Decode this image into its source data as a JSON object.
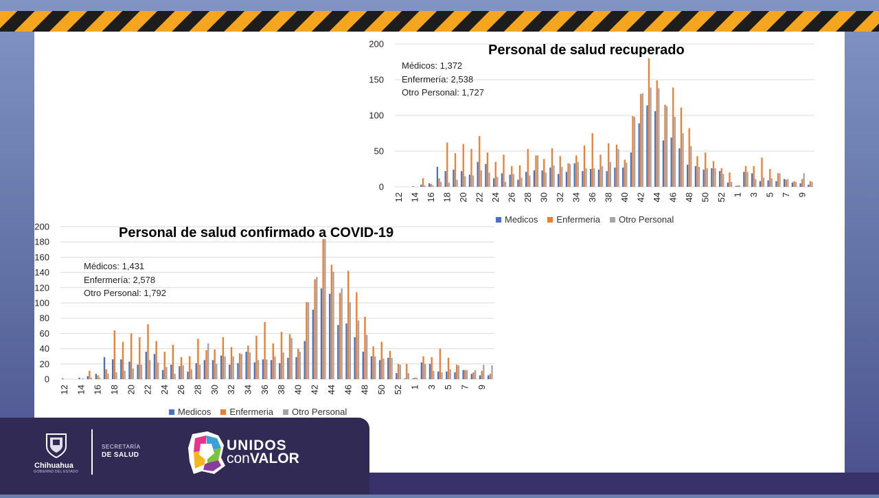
{
  "colors": {
    "medicos": "#4472c4",
    "enfermeria": "#ed7d31",
    "otro": "#a5a5a5",
    "grid": "#d9d9d9"
  },
  "legend_labels": [
    "Medicos",
    "Enfermeria",
    "Otro Personal"
  ],
  "chart_data": [
    {
      "type": "bar",
      "title": "Personal de salud recuperado",
      "notes": [
        "Médicos: 1,372",
        "Enfermería: 2,538",
        "Otro Personal: 1,727"
      ],
      "ylim": [
        0,
        200
      ],
      "yticks": [
        0,
        50,
        100,
        150,
        200
      ],
      "categories": [
        12,
        13,
        14,
        15,
        16,
        17,
        18,
        19,
        20,
        21,
        22,
        23,
        24,
        25,
        26,
        27,
        28,
        29,
        30,
        31,
        32,
        33,
        34,
        35,
        36,
        37,
        38,
        39,
        40,
        41,
        42,
        43,
        44,
        45,
        46,
        47,
        48,
        49,
        50,
        51,
        52,
        53,
        1,
        2,
        3,
        4,
        5,
        6,
        7,
        8,
        9,
        10
      ],
      "xtick_labels": [
        "12",
        "14",
        "16",
        "18",
        "20",
        "22",
        "24",
        "26",
        "28",
        "30",
        "32",
        "34",
        "36",
        "38",
        "40",
        "42",
        "44",
        "46",
        "48",
        "50",
        "52",
        "1",
        "3",
        "5",
        "7",
        "9"
      ],
      "series": [
        {
          "name": "Medicos",
          "values": [
            0,
            0,
            1,
            3,
            5,
            28,
            22,
            24,
            22,
            17,
            35,
            32,
            12,
            19,
            17,
            10,
            21,
            23,
            23,
            27,
            18,
            21,
            33,
            22,
            25,
            24,
            22,
            27,
            27,
            48,
            89,
            114,
            106,
            65,
            69,
            54,
            31,
            29,
            24,
            26,
            22,
            6,
            1,
            21,
            19,
            8,
            9,
            8,
            11,
            6,
            5,
            3
          ]
        },
        {
          "name": "Enfermeria",
          "values": [
            0,
            0,
            0,
            12,
            4,
            12,
            62,
            47,
            60,
            53,
            71,
            48,
            35,
            45,
            29,
            30,
            53,
            44,
            39,
            54,
            43,
            33,
            44,
            58,
            75,
            45,
            61,
            59,
            38,
            99,
            130,
            180,
            149,
            115,
            139,
            111,
            82,
            43,
            48,
            36,
            26,
            20,
            2,
            29,
            29,
            41,
            25,
            19,
            10,
            8,
            11,
            8
          ]
        },
        {
          "name": "Otro Personal",
          "values": [
            0,
            0,
            0,
            2,
            2,
            7,
            6,
            10,
            15,
            16,
            23,
            20,
            14,
            7,
            18,
            13,
            16,
            44,
            20,
            30,
            28,
            32,
            35,
            26,
            26,
            29,
            35,
            53,
            34,
            98,
            131,
            139,
            138,
            113,
            98,
            75,
            57,
            28,
            26,
            26,
            18,
            7,
            2,
            21,
            11,
            13,
            12,
            19,
            11,
            7,
            19,
            7
          ]
        }
      ]
    },
    {
      "type": "bar",
      "title": "Personal de salud confirmado a COVID-19",
      "notes": [
        "Médicos: 1,431",
        "Enfermería: 2,578",
        "Otro Personal: 1,792"
      ],
      "ylim": [
        0,
        200
      ],
      "yticks": [
        0,
        20,
        40,
        60,
        80,
        100,
        120,
        140,
        160,
        180,
        200
      ],
      "categories": [
        12,
        13,
        14,
        15,
        16,
        17,
        18,
        19,
        20,
        21,
        22,
        23,
        24,
        25,
        26,
        27,
        28,
        29,
        30,
        31,
        32,
        33,
        34,
        35,
        36,
        37,
        38,
        39,
        40,
        41,
        42,
        43,
        44,
        45,
        46,
        47,
        48,
        49,
        50,
        51,
        52,
        53,
        1,
        2,
        3,
        4,
        5,
        6,
        7,
        8,
        9,
        10
      ],
      "xtick_labels": [
        "12",
        "14",
        "16",
        "18",
        "20",
        "22",
        "24",
        "26",
        "28",
        "30",
        "32",
        "34",
        "36",
        "38",
        "40",
        "42",
        "44",
        "46",
        "48",
        "50",
        "52",
        "1",
        "3",
        "5",
        "7",
        "9"
      ],
      "series": [
        {
          "name": "Medicos",
          "values": [
            1,
            0,
            2,
            4,
            7,
            29,
            26,
            26,
            23,
            19,
            36,
            33,
            12,
            19,
            17,
            10,
            21,
            25,
            25,
            31,
            19,
            21,
            36,
            22,
            26,
            25,
            21,
            28,
            29,
            50,
            91,
            119,
            112,
            71,
            73,
            55,
            36,
            30,
            25,
            28,
            8,
            1,
            1,
            22,
            20,
            10,
            10,
            9,
            12,
            7,
            5,
            5
          ]
        },
        {
          "name": "Enfermeria",
          "values": [
            0,
            0,
            0,
            11,
            5,
            13,
            64,
            49,
            60,
            55,
            72,
            50,
            36,
            45,
            29,
            30,
            53,
            38,
            39,
            55,
            42,
            34,
            44,
            57,
            75,
            47,
            62,
            59,
            40,
            101,
            131,
            184,
            150,
            113,
            142,
            114,
            82,
            43,
            49,
            37,
            20,
            20,
            2,
            30,
            29,
            40,
            28,
            19,
            12,
            9,
            11,
            7
          ]
        },
        {
          "name": "Otro Personal",
          "values": [
            0,
            0,
            1,
            2,
            2,
            7,
            9,
            11,
            14,
            19,
            25,
            22,
            16,
            7,
            18,
            13,
            19,
            47,
            20,
            30,
            30,
            33,
            35,
            25,
            26,
            30,
            35,
            54,
            36,
            101,
            134,
            184,
            141,
            119,
            101,
            77,
            58,
            30,
            27,
            28,
            19,
            8,
            2,
            20,
            11,
            9,
            13,
            18,
            12,
            12,
            19,
            18
          ]
        }
      ]
    }
  ],
  "footer": {
    "state_name": "Chihuahua",
    "state_sub": "GOBIERNO DEL ESTADO",
    "secretaria_line1": "SECRETARÍA",
    "secretaria_line2": "DE SALUD",
    "campaign_line1": "UNIDOS",
    "campaign_line2a": "con",
    "campaign_line2b": "VALOR"
  }
}
